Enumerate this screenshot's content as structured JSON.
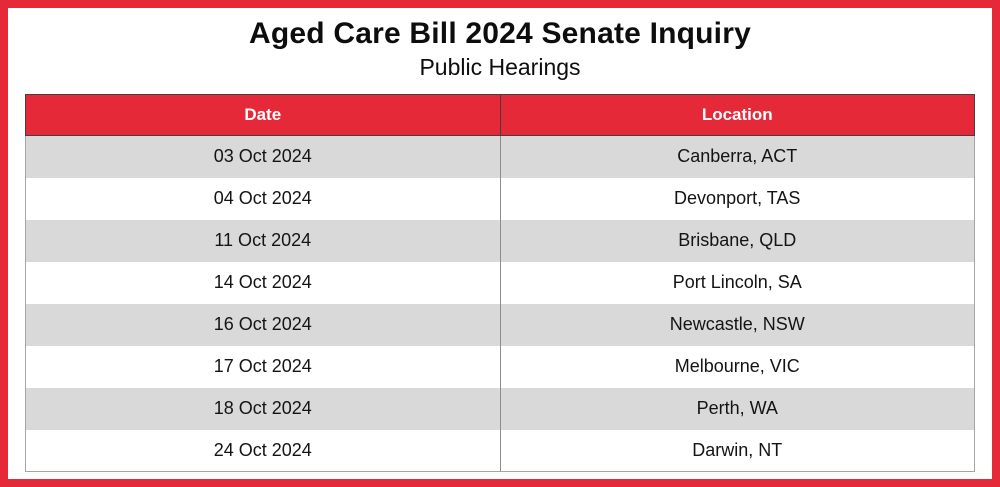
{
  "page": {
    "title": "Aged Care Bill 2024 Senate Inquiry",
    "subtitle": "Public Hearings"
  },
  "colors": {
    "accent_red": "#E62939",
    "header_text": "#FFFFFF",
    "row_alt_gray": "#D9D9D9",
    "row_base_white": "#FFFFFF",
    "page_border": "#E62939",
    "table_outer_border": "#A6A6A6",
    "header_cell_border": "#404040",
    "column_divider": "#8C8C8C",
    "body_text": "#141414"
  },
  "chart_data": {
    "type": "table",
    "title": "Aged Care Bill 2024 Senate Inquiry",
    "subtitle": "Public Hearings",
    "columns": [
      "Date",
      "Location"
    ],
    "rows": [
      [
        "03 Oct 2024",
        "Canberra, ACT"
      ],
      [
        "04 Oct 2024",
        "Devonport, TAS"
      ],
      [
        "11 Oct 2024",
        "Brisbane, QLD"
      ],
      [
        "14 Oct 2024",
        "Port Lincoln, SA"
      ],
      [
        "16 Oct 2024",
        "Newcastle, NSW"
      ],
      [
        "17 Oct 2024",
        "Melbourne, VIC"
      ],
      [
        "18 Oct 2024",
        "Perth, WA"
      ],
      [
        "24 Oct 2024",
        "Darwin, NT"
      ]
    ]
  }
}
